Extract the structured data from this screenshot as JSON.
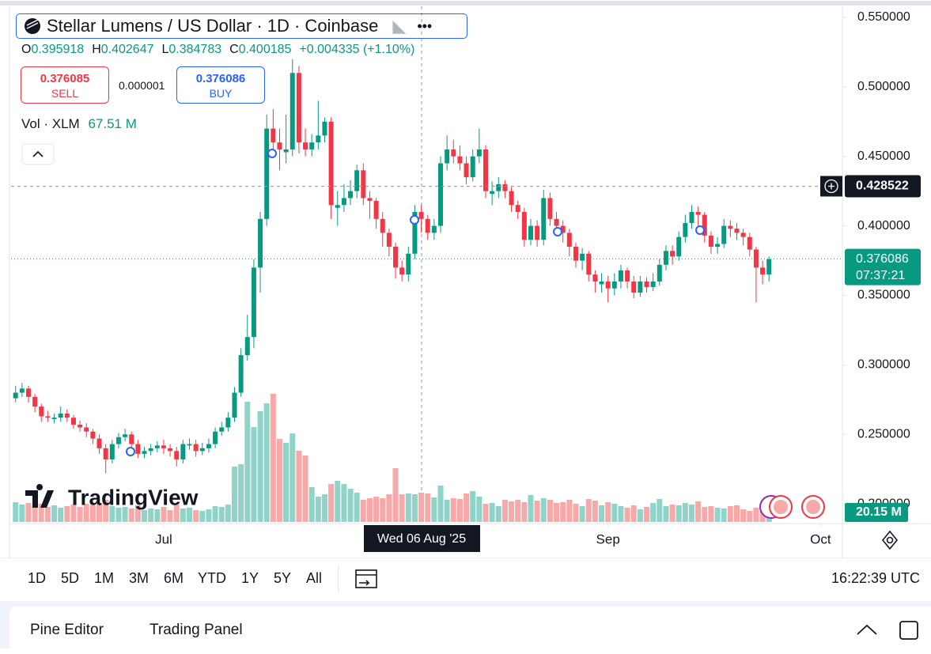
{
  "header": {
    "title": "Stellar Lumens / US Dollar · 1D · Coinbase",
    "ohlc": [
      {
        "key": "O",
        "value": "0.395918"
      },
      {
        "key": "H",
        "value": "0.402647"
      },
      {
        "key": "L",
        "value": "0.384783"
      },
      {
        "key": "C",
        "value": "0.400185"
      }
    ],
    "change": "+0.004335 (+1.10%)",
    "sell": {
      "price": "0.376085",
      "label": "SELL"
    },
    "spread": "0.000001",
    "buy": {
      "price": "0.376086",
      "label": "BUY"
    },
    "volume_label": "Vol · XLM",
    "volume_value": "67.51 M"
  },
  "chart_data": {
    "type": "candlestick",
    "up_color": "#089981",
    "down_color": "#f23645",
    "volume_up_color": "#8fd3c9",
    "volume_down_color": "#f6a9a8",
    "ylim": [
      0.187,
      0.5625
    ],
    "yticks": [
      {
        "value": 0.55,
        "label": "0.550000"
      },
      {
        "value": 0.5,
        "label": "0.500000"
      },
      {
        "value": 0.45,
        "label": "0.450000"
      },
      {
        "value": 0.4,
        "label": "0.400000"
      },
      {
        "value": 0.35,
        "label": "0.350000"
      },
      {
        "value": 0.3,
        "label": "0.300000"
      },
      {
        "value": 0.25,
        "label": "0.250000"
      },
      {
        "value": 0.2,
        "label": "0.200000"
      }
    ],
    "xlim": [
      -0.7,
      128.4
    ],
    "xticks": [
      {
        "value": 23,
        "label": "Jul"
      },
      {
        "value": 92,
        "label": "Sep"
      },
      {
        "value": 125,
        "label": "Oct"
      }
    ],
    "crosshair_date": "Wed 06 Aug '25",
    "crosshair_price": 0.428522,
    "last_price": 0.376086,
    "countdown": "07:37:21",
    "ohlc": [
      [
        0.276,
        0.285,
        0.273,
        0.28
      ],
      [
        0.28,
        0.287,
        0.277,
        0.283
      ],
      [
        0.283,
        0.285,
        0.273,
        0.277
      ],
      [
        0.277,
        0.279,
        0.266,
        0.27
      ],
      [
        0.27,
        0.272,
        0.259,
        0.263
      ],
      [
        0.263,
        0.267,
        0.259,
        0.262
      ],
      [
        0.261,
        0.265,
        0.258,
        0.262
      ],
      [
        0.262,
        0.27,
        0.259,
        0.265
      ],
      [
        0.265,
        0.268,
        0.259,
        0.262
      ],
      [
        0.262,
        0.264,
        0.254,
        0.257
      ],
      [
        0.257,
        0.26,
        0.252,
        0.255
      ],
      [
        0.255,
        0.258,
        0.248,
        0.252
      ],
      [
        0.252,
        0.254,
        0.243,
        0.247
      ],
      [
        0.247,
        0.25,
        0.236,
        0.24
      ],
      [
        0.24,
        0.243,
        0.222,
        0.232
      ],
      [
        0.232,
        0.246,
        0.229,
        0.243
      ],
      [
        0.243,
        0.251,
        0.24,
        0.248
      ],
      [
        0.248,
        0.254,
        0.245,
        0.25
      ],
      [
        0.25,
        0.252,
        0.239,
        0.243
      ],
      [
        0.243,
        0.246,
        0.233,
        0.236
      ],
      [
        0.236,
        0.241,
        0.233,
        0.238
      ],
      [
        0.238,
        0.243,
        0.235,
        0.24
      ],
      [
        0.24,
        0.245,
        0.237,
        0.242
      ],
      [
        0.242,
        0.246,
        0.236,
        0.24
      ],
      [
        0.24,
        0.243,
        0.234,
        0.238
      ],
      [
        0.238,
        0.241,
        0.227,
        0.232
      ],
      [
        0.232,
        0.246,
        0.229,
        0.243
      ],
      [
        0.242,
        0.247,
        0.239,
        0.243
      ],
      [
        0.243,
        0.246,
        0.234,
        0.238
      ],
      [
        0.238,
        0.244,
        0.235,
        0.24
      ],
      [
        0.24,
        0.247,
        0.237,
        0.243
      ],
      [
        0.243,
        0.255,
        0.24,
        0.252
      ],
      [
        0.252,
        0.259,
        0.249,
        0.255
      ],
      [
        0.255,
        0.266,
        0.252,
        0.262
      ],
      [
        0.262,
        0.284,
        0.259,
        0.28
      ],
      [
        0.28,
        0.312,
        0.277,
        0.307
      ],
      [
        0.307,
        0.336,
        0.303,
        0.32
      ],
      [
        0.32,
        0.376,
        0.312,
        0.37
      ],
      [
        0.37,
        0.41,
        0.352,
        0.405
      ],
      [
        0.405,
        0.48,
        0.4,
        0.47
      ],
      [
        0.47,
        0.484,
        0.452,
        0.46
      ],
      [
        0.46,
        0.47,
        0.44,
        0.455
      ],
      [
        0.453,
        0.48,
        0.445,
        0.455
      ],
      [
        0.455,
        0.52,
        0.45,
        0.51
      ],
      [
        0.51,
        0.515,
        0.452,
        0.46
      ],
      [
        0.46,
        0.47,
        0.45,
        0.455
      ],
      [
        0.455,
        0.466,
        0.45,
        0.46
      ],
      [
        0.46,
        0.49,
        0.455,
        0.465
      ],
      [
        0.465,
        0.478,
        0.46,
        0.475
      ],
      [
        0.475,
        0.478,
        0.405,
        0.415
      ],
      [
        0.413,
        0.425,
        0.4,
        0.415
      ],
      [
        0.415,
        0.43,
        0.41,
        0.42
      ],
      [
        0.42,
        0.433,
        0.415,
        0.425
      ],
      [
        0.425,
        0.444,
        0.42,
        0.44
      ],
      [
        0.44,
        0.445,
        0.415,
        0.42
      ],
      [
        0.42,
        0.425,
        0.405,
        0.418
      ],
      [
        0.418,
        0.42,
        0.398,
        0.405
      ],
      [
        0.405,
        0.41,
        0.385,
        0.395
      ],
      [
        0.395,
        0.398,
        0.378,
        0.385
      ],
      [
        0.385,
        0.388,
        0.362,
        0.37
      ],
      [
        0.37,
        0.375,
        0.36,
        0.365
      ],
      [
        0.365,
        0.385,
        0.36,
        0.38
      ],
      [
        0.38,
        0.415,
        0.376,
        0.41
      ],
      [
        0.41,
        0.415,
        0.395,
        0.405
      ],
      [
        0.405,
        0.408,
        0.39,
        0.395
      ],
      [
        0.395,
        0.405,
        0.39,
        0.4
      ],
      [
        0.4,
        0.45,
        0.395,
        0.445
      ],
      [
        0.445,
        0.465,
        0.44,
        0.455
      ],
      [
        0.455,
        0.462,
        0.445,
        0.45
      ],
      [
        0.45,
        0.458,
        0.44,
        0.445
      ],
      [
        0.445,
        0.45,
        0.43,
        0.435
      ],
      [
        0.435,
        0.455,
        0.432,
        0.45
      ],
      [
        0.45,
        0.47,
        0.445,
        0.455
      ],
      [
        0.455,
        0.458,
        0.42,
        0.425
      ],
      [
        0.423,
        0.432,
        0.415,
        0.425
      ],
      [
        0.425,
        0.435,
        0.42,
        0.43
      ],
      [
        0.43,
        0.433,
        0.42,
        0.425
      ],
      [
        0.425,
        0.428,
        0.41,
        0.415
      ],
      [
        0.415,
        0.418,
        0.405,
        0.41
      ],
      [
        0.41,
        0.413,
        0.385,
        0.39
      ],
      [
        0.39,
        0.405,
        0.386,
        0.4
      ],
      [
        0.4,
        0.404,
        0.385,
        0.39
      ],
      [
        0.39,
        0.426,
        0.386,
        0.42
      ],
      [
        0.42,
        0.424,
        0.4,
        0.405
      ],
      [
        0.405,
        0.41,
        0.395,
        0.4
      ],
      [
        0.4,
        0.404,
        0.388,
        0.395
      ],
      [
        0.395,
        0.398,
        0.378,
        0.385
      ],
      [
        0.385,
        0.388,
        0.37,
        0.375
      ],
      [
        0.375,
        0.384,
        0.368,
        0.38
      ],
      [
        0.38,
        0.382,
        0.36,
        0.365
      ],
      [
        0.365,
        0.368,
        0.352,
        0.36
      ],
      [
        0.358,
        0.366,
        0.352,
        0.36
      ],
      [
        0.36,
        0.364,
        0.345,
        0.355
      ],
      [
        0.355,
        0.366,
        0.35,
        0.36
      ],
      [
        0.36,
        0.372,
        0.355,
        0.368
      ],
      [
        0.368,
        0.37,
        0.355,
        0.36
      ],
      [
        0.36,
        0.364,
        0.348,
        0.352
      ],
      [
        0.352,
        0.364,
        0.349,
        0.36
      ],
      [
        0.36,
        0.363,
        0.352,
        0.356
      ],
      [
        0.356,
        0.366,
        0.353,
        0.36
      ],
      [
        0.36,
        0.376,
        0.357,
        0.372
      ],
      [
        0.372,
        0.386,
        0.368,
        0.382
      ],
      [
        0.382,
        0.386,
        0.372,
        0.378
      ],
      [
        0.378,
        0.396,
        0.375,
        0.392
      ],
      [
        0.392,
        0.408,
        0.388,
        0.402
      ],
      [
        0.402,
        0.415,
        0.398,
        0.41
      ],
      [
        0.41,
        0.414,
        0.398,
        0.408
      ],
      [
        0.408,
        0.41,
        0.388,
        0.393
      ],
      [
        0.393,
        0.396,
        0.38,
        0.385
      ],
      [
        0.385,
        0.392,
        0.38,
        0.387
      ],
      [
        0.387,
        0.405,
        0.384,
        0.4
      ],
      [
        0.4,
        0.404,
        0.392,
        0.398
      ],
      [
        0.398,
        0.402,
        0.39,
        0.395
      ],
      [
        0.395,
        0.398,
        0.386,
        0.392
      ],
      [
        0.392,
        0.395,
        0.378,
        0.383
      ],
      [
        0.383,
        0.385,
        0.345,
        0.37
      ],
      [
        0.37,
        0.375,
        0.358,
        0.365
      ],
      [
        0.365,
        0.378,
        0.36,
        0.376
      ]
    ],
    "volume": {
      "vlim": [
        0,
        330
      ],
      "last_label": "20.15 M",
      "values": [
        50,
        44,
        48,
        40,
        46,
        38,
        42,
        36,
        40,
        44,
        38,
        46,
        42,
        48,
        56,
        40,
        36,
        38,
        34,
        42,
        30,
        34,
        32,
        38,
        30,
        44,
        34,
        36,
        30,
        28,
        32,
        40,
        38,
        44,
        140,
        146,
        304,
        240,
        280,
        300,
        324,
        210,
        200,
        224,
        180,
        168,
        88,
        64,
        70,
        96,
        104,
        96,
        84,
        74,
        56,
        60,
        64,
        60,
        70,
        136,
        70,
        72,
        70,
        74,
        72,
        62,
        92,
        56,
        60,
        58,
        72,
        78,
        64,
        46,
        48,
        40,
        56,
        52,
        56,
        50,
        68,
        54,
        60,
        56,
        48,
        50,
        56,
        46,
        40,
        58,
        54,
        42,
        50,
        46,
        40,
        36,
        42,
        32,
        38,
        48,
        58,
        40,
        44,
        42,
        48,
        44,
        52,
        38,
        40,
        36,
        34,
        40,
        42,
        32,
        28,
        36,
        30,
        20.15
      ]
    }
  },
  "logo": "TradingView",
  "toolbar": {
    "ranges": [
      "1D",
      "5D",
      "1M",
      "3M",
      "6M",
      "YTD",
      "1Y",
      "5Y",
      "All"
    ],
    "clock": "16:22:39 UTC"
  },
  "panel": {
    "tabs": [
      "Pine Editor",
      "Trading Panel"
    ]
  }
}
